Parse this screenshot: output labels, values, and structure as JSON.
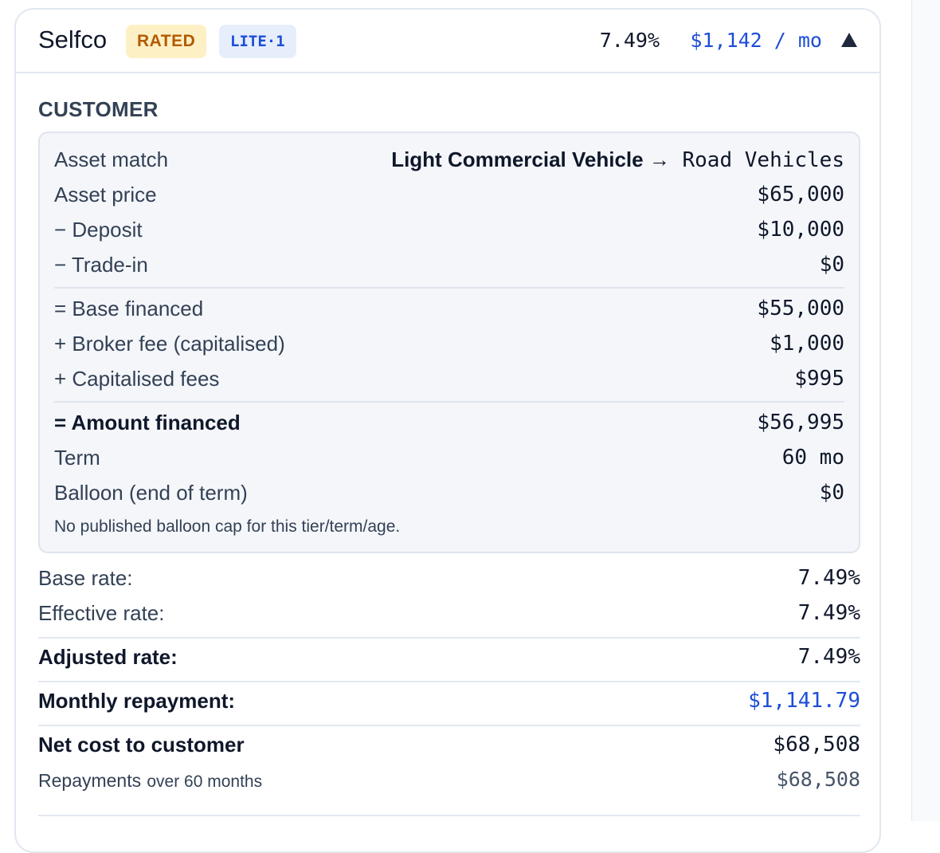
{
  "header": {
    "lender": "Selfco",
    "badges": [
      "RATED",
      "LITE·1"
    ],
    "rate": "7.49%",
    "payment": "$1,142 / mo",
    "toggle_icon": "chevron-up-triangle-icon"
  },
  "customer": {
    "title": "CUSTOMER",
    "asset_match": {
      "label": "Asset match",
      "value_prefix": "Light Commercial Vehicle →",
      "value": "Road Vehicles"
    },
    "rows_a": [
      {
        "label": "Asset price",
        "value": "$65,000"
      },
      {
        "label": "− Deposit",
        "value": "$10,000"
      },
      {
        "label": "− Trade-in",
        "value": "$0"
      }
    ],
    "rows_b": [
      {
        "label": "= Base financed",
        "value": "$55,000"
      },
      {
        "label": "+ Broker fee (capitalised)",
        "value": "$1,000"
      },
      {
        "label": "+ Capitalised fees",
        "value": "$995"
      }
    ],
    "amount_financed": {
      "label": "= Amount financed",
      "value": "$56,995"
    },
    "term": {
      "label": "Term",
      "value": "60 mo"
    },
    "balloon": {
      "label": "Balloon (end of term)",
      "value": "$0"
    },
    "note": "No published balloon cap for this tier/term/age."
  },
  "rates": {
    "base": {
      "label": "Base rate:",
      "value": "7.49%"
    },
    "effective": {
      "label": "Effective rate:",
      "value": "7.49%"
    },
    "adjusted": {
      "label": "Adjusted rate:",
      "value": "7.49%"
    },
    "monthly": {
      "label": "Monthly repayment:",
      "value": "$1,141.79"
    },
    "net_cost": {
      "label": "Net cost to customer",
      "value": "$68,508"
    },
    "repayments": {
      "label_main": "Repayments",
      "label_small": "over 60 months",
      "value": "$68,508"
    }
  },
  "colors": {
    "accent": "#1d4ed8",
    "rated_badge_bg": "#fdf0c4",
    "rated_badge_text": "#b35a00",
    "tier_badge_bg": "#e6eefb"
  }
}
